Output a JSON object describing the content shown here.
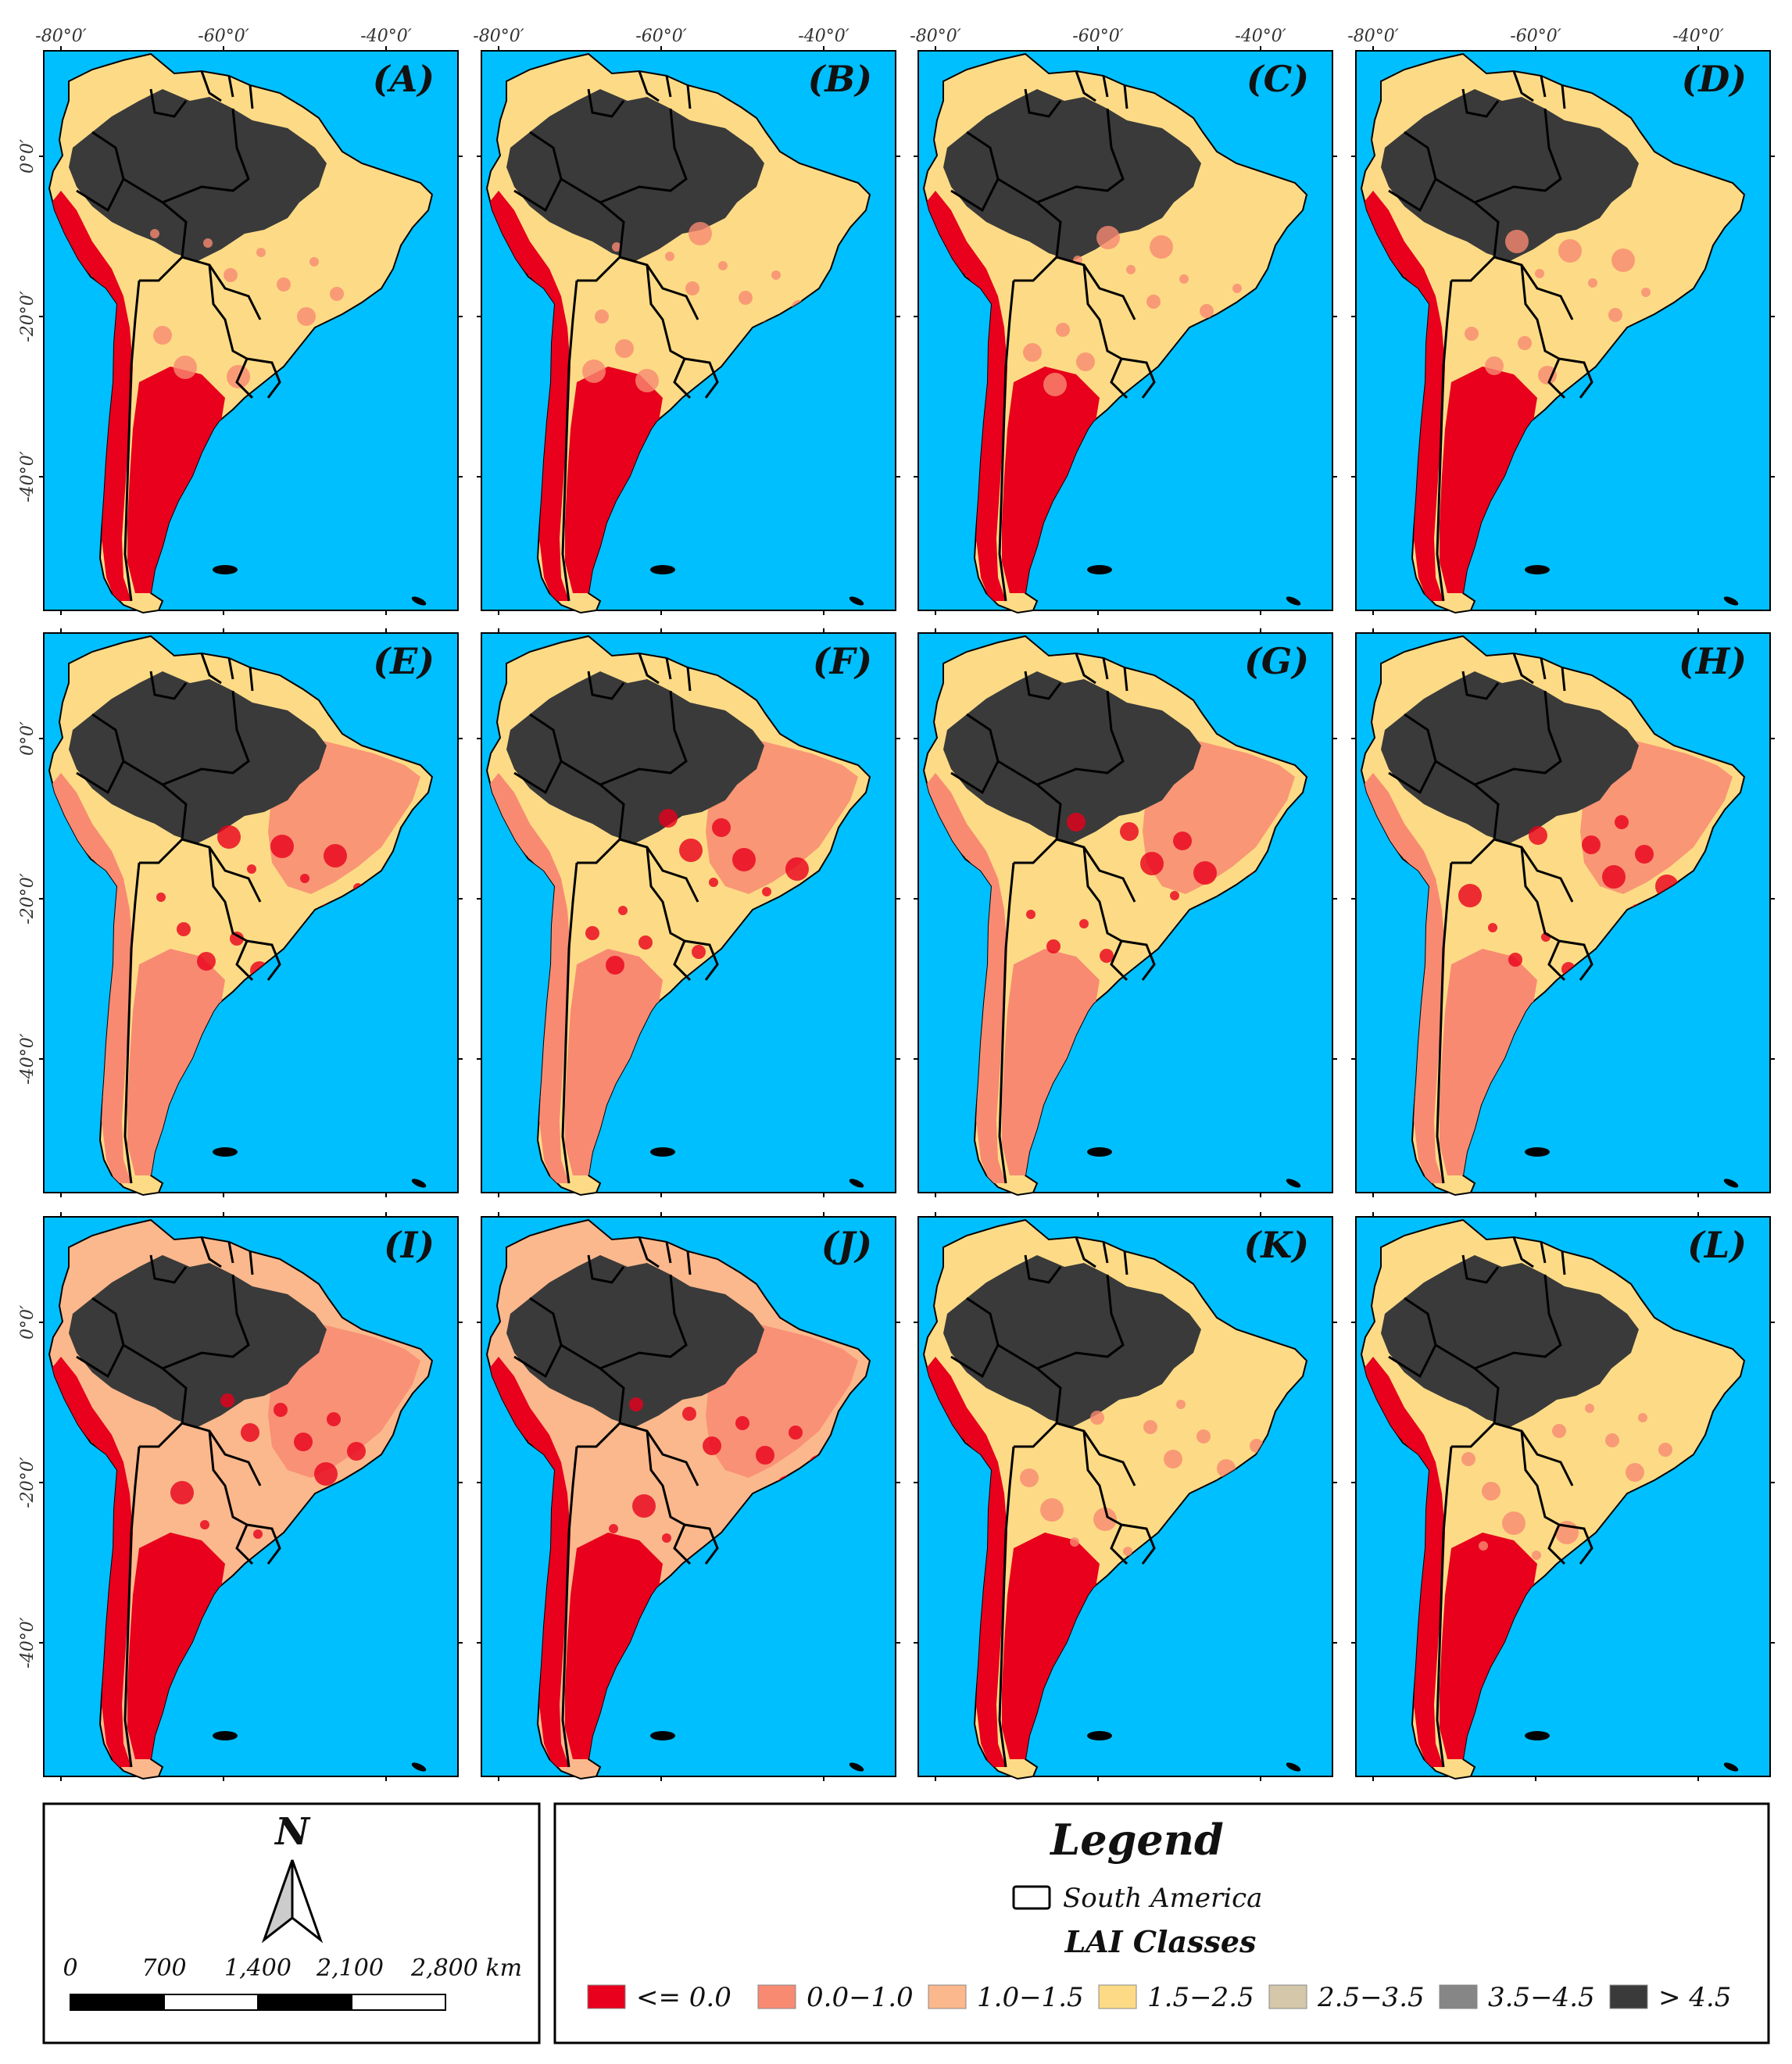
{
  "panels": [
    {
      "letter": "(A)",
      "color_scheme": "mixed-red"
    },
    {
      "letter": "(B)",
      "color_scheme": "mixed-red"
    },
    {
      "letter": "(C)",
      "color_scheme": "mixed-red"
    },
    {
      "letter": "(D)",
      "color_scheme": "mixed-red"
    },
    {
      "letter": "(E)",
      "color_scheme": "salmon"
    },
    {
      "letter": "(F)",
      "color_scheme": "salmon"
    },
    {
      "letter": "(G)",
      "color_scheme": "salmon"
    },
    {
      "letter": "(H)",
      "color_scheme": "salmon"
    },
    {
      "letter": "(I)",
      "color_scheme": "dry"
    },
    {
      "letter": "(J)",
      "color_scheme": "dry"
    },
    {
      "letter": "(K)",
      "color_scheme": "mixed-red"
    },
    {
      "letter": "(L)",
      "color_scheme": "mixed-red"
    }
  ],
  "axes": {
    "top_ticks": [
      "-80°0′",
      "-60°0′",
      "-40°0′"
    ],
    "left_ticks": [
      "0°0′",
      "-20°0′",
      "-40°0′"
    ]
  },
  "colors": {
    "ocean": "#00bfff",
    "forest": "#3a3a3a",
    "border": "#000000"
  },
  "north_arrow": {
    "label": "N"
  },
  "scale_bar": {
    "labels": [
      "0",
      "700",
      "1,400",
      "2,100",
      "2,800 km"
    ]
  },
  "legend": {
    "title": "Legend",
    "boundary_label": "South America",
    "classes_title": "LAI Classes",
    "classes": [
      {
        "label": "<= 0.0",
        "color": "#e8001c"
      },
      {
        "label": "0.0−1.0",
        "color": "#f88a72"
      },
      {
        "label": "1.0−1.5",
        "color": "#fbb88c"
      },
      {
        "label": "1.5−2.5",
        "color": "#fddb86"
      },
      {
        "label": "2.5−3.5",
        "color": "#d4c7aa"
      },
      {
        "label": "3.5−4.5",
        "color": "#868686"
      },
      {
        "label": "> 4.5",
        "color": "#3a3a3a"
      }
    ]
  }
}
